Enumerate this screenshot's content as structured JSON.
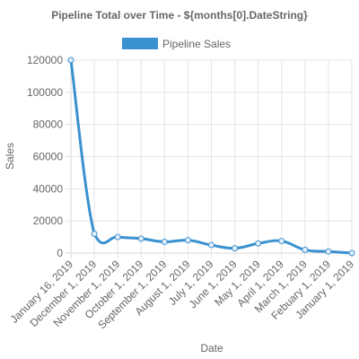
{
  "chart_data": {
    "type": "line",
    "title": "Pipeline Total over Time - ${months[0].DateString}",
    "xlabel": "Date",
    "ylabel": "Sales",
    "ylim": [
      0,
      120000
    ],
    "y_ticks": [
      "0",
      "20000",
      "40000",
      "60000",
      "80000",
      "100000",
      "120000"
    ],
    "grid": true,
    "legend_position": "top",
    "categories": [
      "January 16, 2019",
      "December 1, 2019",
      "November 1, 2019",
      "October 1, 2019",
      "September 1, 2019",
      "August 1, 2019",
      "July 1, 2019",
      "June 1, 2019",
      "May 1, 2019",
      "April 1, 2019",
      "March 1, 2019",
      "Febuary 1, 2019",
      "January 1, 2019"
    ],
    "series": [
      {
        "name": "Pipeline Sales",
        "color": "#3a91d0",
        "values": [
          120000,
          12000,
          10000,
          9000,
          7000,
          8000,
          5000,
          3000,
          6000,
          7500,
          2000,
          1000,
          0
        ]
      }
    ]
  }
}
